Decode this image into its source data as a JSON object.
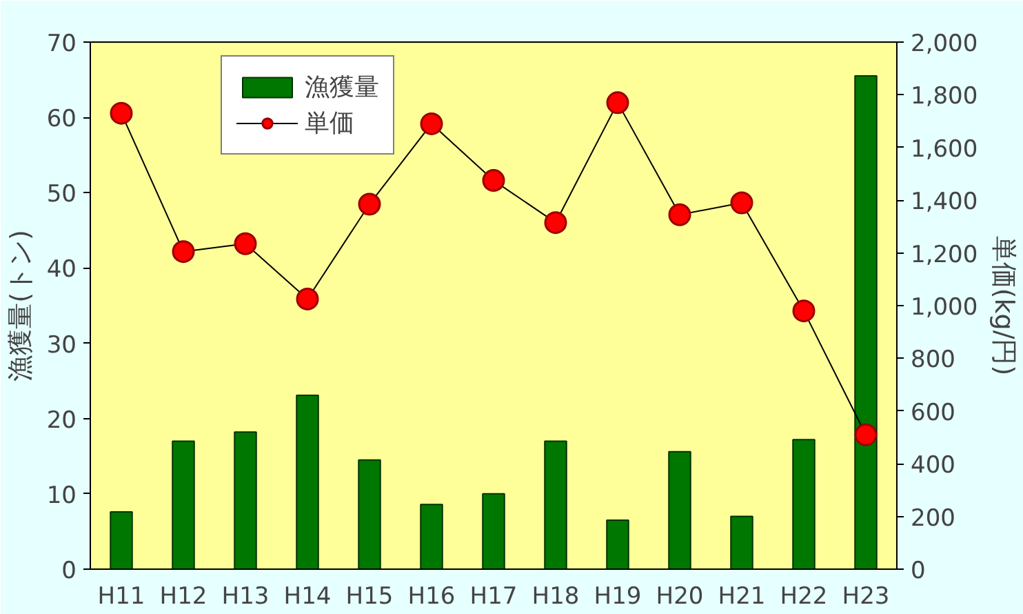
{
  "chart_data": {
    "type": "bar",
    "ylabel": "漁獲量(トン)",
    "y2label": "単価(kg/円)",
    "categories": [
      "H11",
      "H12",
      "H13",
      "H14",
      "H15",
      "H16",
      "H17",
      "H18",
      "H19",
      "H20",
      "H21",
      "H22",
      "H23"
    ],
    "series": [
      {
        "name": "漁獲量",
        "color": "#007700",
        "values": [
          7.6,
          17.0,
          18.2,
          23.1,
          14.5,
          8.6,
          10.0,
          17.0,
          6.5,
          15.6,
          7.0,
          17.2,
          65.5
        ]
      },
      {
        "name": "単価",
        "type": "line",
        "axis": "y2",
        "color": "#ff0000",
        "marker": "circle",
        "values": [
          1730,
          1205,
          1235,
          1025,
          1385,
          1690,
          1475,
          1315,
          1770,
          1345,
          1390,
          980,
          510
        ]
      }
    ],
    "ylim": [
      0,
      70
    ],
    "yticks": [
      0,
      10,
      20,
      30,
      40,
      50,
      60,
      70
    ],
    "y2lim": [
      0,
      2000
    ],
    "y2ticks": [
      {
        "value": 0,
        "label": "0"
      },
      {
        "value": 200,
        "label": "200"
      },
      {
        "value": 400,
        "label": "400"
      },
      {
        "value": 600,
        "label": "600"
      },
      {
        "value": 800,
        "label": "800"
      },
      {
        "value": 1000,
        "label": "1,000"
      },
      {
        "value": 1200,
        "label": "1,200"
      },
      {
        "value": 1400,
        "label": "1,400"
      },
      {
        "value": 1600,
        "label": "1,600"
      },
      {
        "value": 1800,
        "label": "1,800"
      },
      {
        "value": 2000,
        "label": "2,000"
      }
    ],
    "grid": false,
    "legend": "top left"
  }
}
